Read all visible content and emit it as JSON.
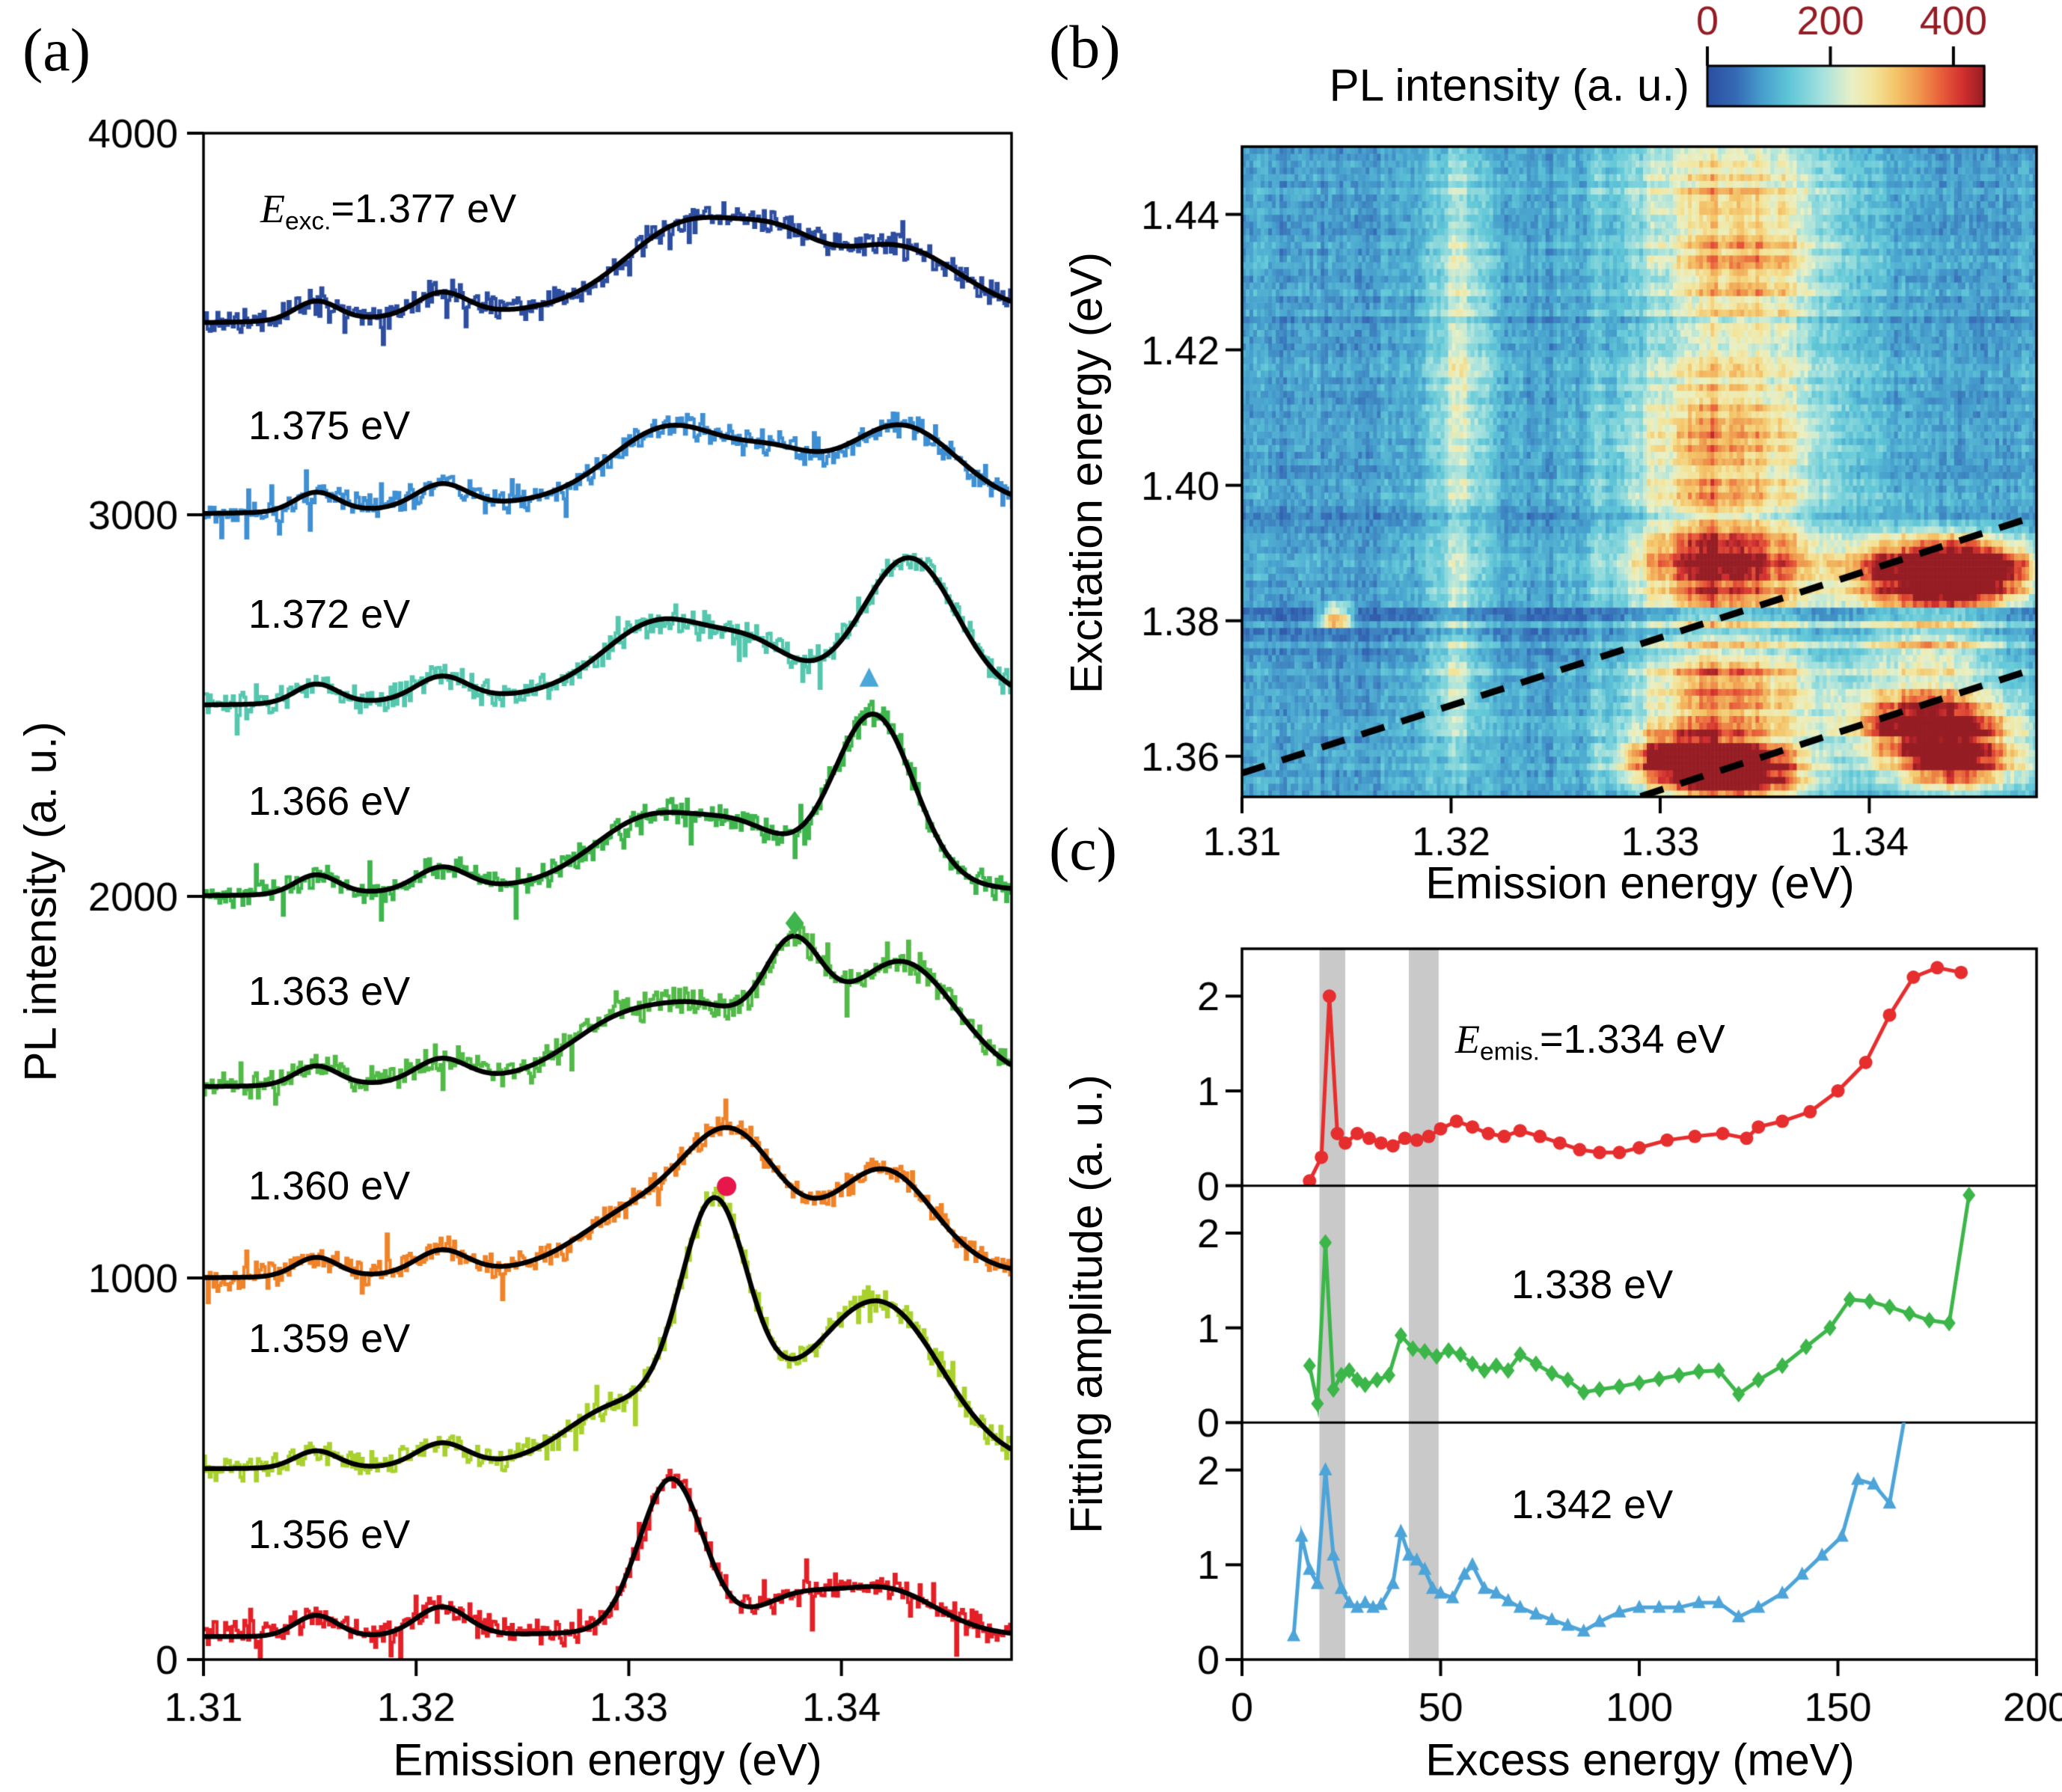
{
  "panel_labels": {
    "a": "(a)",
    "b": "(b)",
    "c": "(c)"
  },
  "chart_data": [
    {
      "id": "a",
      "type": "line",
      "xlabel": "Emission energy (eV)",
      "ylabel": "PL intensity (a. u.)",
      "xlim": [
        1.31,
        1.348
      ],
      "ylim": [
        0,
        4000
      ],
      "xticks": [
        1.31,
        1.32,
        1.33,
        1.34
      ],
      "yticks": [
        0,
        1000,
        2000,
        3000,
        4000
      ],
      "fit_color": "#000000",
      "noise_amp": 42,
      "spectra": [
        {
          "excitation_label": {
            "prefix": "E",
            "sub": "exc.",
            "rest": "=1.377 eV"
          },
          "excitation_eV": 1.377,
          "color": "#2d4da0",
          "offset": 3500,
          "peaks": [
            [
              1.3153,
              0.001,
              50
            ],
            [
              1.3212,
              0.0012,
              60
            ],
            [
              1.333,
              0.003,
              215
            ],
            [
              1.3372,
              0.0018,
              90
            ],
            [
              1.3425,
              0.003,
              160
            ],
            [
              1.3355,
              0.011,
              55
            ]
          ]
        },
        {
          "excitation_label": {
            "rest": "1.375 eV"
          },
          "excitation_eV": 1.375,
          "color": "#3f8fd4",
          "offset": 3000,
          "peaks": [
            [
              1.3153,
              0.001,
              50
            ],
            [
              1.3212,
              0.0012,
              60
            ],
            [
              1.332,
              0.0028,
              185
            ],
            [
              1.337,
              0.0018,
              80
            ],
            [
              1.3428,
              0.0026,
              195
            ],
            [
              1.3355,
              0.011,
              50
            ]
          ]
        },
        {
          "excitation_label": {
            "rest": "1.372 eV"
          },
          "excitation_eV": 1.372,
          "color": "#54c7ae",
          "offset": 2500,
          "peaks": [
            [
              1.3153,
              0.001,
              50
            ],
            [
              1.3212,
              0.0012,
              60
            ],
            [
              1.3315,
              0.0026,
              180
            ],
            [
              1.336,
              0.0018,
              90
            ],
            [
              1.3432,
              0.0022,
              355
            ],
            [
              1.335,
              0.01,
              45
            ]
          ]
        },
        {
          "excitation_label": {
            "rest": "1.366 eV"
          },
          "excitation_eV": 1.366,
          "color": "#3eb54d",
          "offset": 2000,
          "peaks": [
            [
              1.3153,
              0.001,
              50
            ],
            [
              1.3212,
              0.0012,
              60
            ],
            [
              1.331,
              0.0026,
              165
            ],
            [
              1.3355,
              0.002,
              110
            ],
            [
              1.3415,
              0.0019,
              440
            ],
            [
              1.335,
              0.01,
              45
            ]
          ]
        },
        {
          "excitation_label": {
            "rest": "1.363 eV"
          },
          "excitation_eV": 1.363,
          "color": "#52ba47",
          "offset": 1500,
          "peaks": [
            [
              1.3153,
              0.001,
              50
            ],
            [
              1.3212,
              0.0012,
              60
            ],
            [
              1.33,
              0.0026,
              150
            ],
            [
              1.334,
              0.002,
              120
            ],
            [
              1.3377,
              0.0014,
              290
            ],
            [
              1.3428,
              0.0026,
              300
            ],
            [
              1.335,
              0.01,
              40
            ]
          ]
        },
        {
          "excitation_label": {
            "rest": "1.360 eV"
          },
          "excitation_eV": 1.36,
          "color": "#f08228",
          "offset": 1000,
          "peaks": [
            [
              1.3153,
              0.001,
              50
            ],
            [
              1.3212,
              0.0012,
              60
            ],
            [
              1.33,
              0.0024,
              120
            ],
            [
              1.3348,
              0.0023,
              330
            ],
            [
              1.342,
              0.0023,
              250
            ],
            [
              1.335,
              0.009,
              45
            ]
          ]
        },
        {
          "excitation_label": {
            "rest": "1.359 eV"
          },
          "excitation_eV": 1.359,
          "color": "#a8d12e",
          "offset": 500,
          "peaks": [
            [
              1.3153,
              0.001,
              45
            ],
            [
              1.3212,
              0.0012,
              60
            ],
            [
              1.3295,
              0.0024,
              140
            ],
            [
              1.334,
              0.0016,
              600
            ],
            [
              1.3375,
              0.003,
              100
            ],
            [
              1.342,
              0.0028,
              380
            ],
            [
              1.336,
              0.009,
              30
            ]
          ]
        },
        {
          "excitation_label": {
            "rest": "1.356 eV"
          },
          "excitation_eV": 1.356,
          "color": "#e41f26",
          "offset": 60,
          "peaks": [
            [
              1.3153,
              0.001,
              55
            ],
            [
              1.3212,
              0.0012,
              75
            ],
            [
              1.332,
              0.0015,
              400
            ],
            [
              1.3377,
              0.0018,
              75
            ],
            [
              1.342,
              0.0024,
              115
            ],
            [
              1.335,
              0.008,
              15
            ]
          ]
        }
      ],
      "feature_markers": [
        {
          "shape": "circle",
          "color": "#e8174b",
          "x": 1.3346,
          "y": 1240
        },
        {
          "shape": "diamond",
          "color": "#3eb54d",
          "x": 1.3378,
          "y": 1930
        },
        {
          "shape": "triangle",
          "color": "#4aa8d8",
          "x": 1.3413,
          "y": 2570
        }
      ]
    },
    {
      "id": "b",
      "type": "heatmap",
      "xlabel": "Emission energy (eV)",
      "ylabel": "Excitation energy (eV)",
      "xlim": [
        1.31,
        1.348
      ],
      "ylim": [
        1.354,
        1.45
      ],
      "xticks": [
        1.31,
        1.32,
        1.33,
        1.34
      ],
      "yticks": [
        1.36,
        1.38,
        1.4,
        1.42,
        1.44
      ],
      "ytick_labels": [
        "1.36",
        "1.38",
        "1.40",
        "1.42",
        "1.44"
      ],
      "colorbar": {
        "title": "PL intensity (a. u.)",
        "ticks": [
          0,
          200,
          400
        ],
        "range": [
          0,
          450
        ]
      },
      "colormap": [
        [
          0,
          "#2a4fa0"
        ],
        [
          0.1,
          "#3569b5"
        ],
        [
          0.2,
          "#47a0cd"
        ],
        [
          0.3,
          "#62c8d8"
        ],
        [
          0.42,
          "#a9e3de"
        ],
        [
          0.52,
          "#e9f0c6"
        ],
        [
          0.6,
          "#f3e49a"
        ],
        [
          0.68,
          "#f4c469"
        ],
        [
          0.76,
          "#ef9a4e"
        ],
        [
          0.84,
          "#e9613b"
        ],
        [
          0.92,
          "#d2302f"
        ],
        [
          1,
          "#941c24"
        ]
      ],
      "base_level": 95,
      "blobs": [
        {
          "x": 1.3335,
          "y": 1.3578,
          "sx": 0.0022,
          "sy": 0.003,
          "a": 430
        },
        {
          "x": 1.3308,
          "y": 1.3598,
          "sx": 0.0018,
          "sy": 0.0026,
          "a": 280
        },
        {
          "x": 1.343,
          "y": 1.3652,
          "sx": 0.0024,
          "sy": 0.0036,
          "a": 420
        },
        {
          "x": 1.3442,
          "y": 1.359,
          "sx": 0.002,
          "sy": 0.0028,
          "a": 330
        },
        {
          "x": 1.3428,
          "y": 1.3868,
          "sx": 0.0026,
          "sy": 0.004,
          "a": 410
        },
        {
          "x": 1.3452,
          "y": 1.3872,
          "sx": 0.0017,
          "sy": 0.003,
          "a": 300
        },
        {
          "x": 1.333,
          "y": 1.388,
          "sx": 0.0028,
          "sy": 0.0055,
          "a": 280
        },
        {
          "x": 1.3332,
          "y": 1.37,
          "sx": 0.0028,
          "sy": 0.0058,
          "a": 220
        },
        {
          "x": 1.343,
          "y": 1.3762,
          "sx": 0.0024,
          "sy": 0.003,
          "a": 190
        },
        {
          "x": 1.333,
          "y": 1.406,
          "sx": 0.003,
          "sy": 0.0085,
          "a": 185
        },
        {
          "x": 1.334,
          "y": 1.431,
          "sx": 0.0026,
          "sy": 0.0085,
          "a": 140
        },
        {
          "x": 1.333,
          "y": 1.447,
          "sx": 0.0035,
          "sy": 0.01,
          "a": 120
        },
        {
          "x": 1.3205,
          "y": 1.418,
          "sx": 0.0009,
          "sy": 0.028,
          "a": 130
        },
        {
          "x": 1.3202,
          "y": 1.372,
          "sx": 0.0008,
          "sy": 0.009,
          "a": 85
        },
        {
          "x": 1.3145,
          "y": 1.3808,
          "sx": 0.0005,
          "sy": 0.0009,
          "a": 600
        },
        {
          "x": 1.3335,
          "y": 1.4,
          "sx": 0.0045,
          "sy": 0.05,
          "a": 55
        }
      ],
      "dark_rows": [
        [
          1.3738,
          1.376,
          0.74
        ],
        [
          1.3772,
          1.3792,
          0.62
        ],
        [
          1.38,
          1.382,
          0.52
        ],
        [
          1.3936,
          1.3962,
          0.76
        ],
        [
          1.4238,
          1.4252,
          0.85
        ]
      ],
      "dashed_lines": [
        {
          "name": "replica-line-upper",
          "offset_eV": 0.0475
        },
        {
          "name": "replica-line-lower",
          "offset_eV": 0.025
        }
      ]
    },
    {
      "id": "c",
      "type": "line",
      "xlabel": "Excess energy (meV)",
      "ylabel": "Fitting amplitude (a. u.)",
      "xlim": [
        0,
        200
      ],
      "xticks": [
        0,
        50,
        100,
        150,
        200
      ],
      "ylim": [
        0,
        2.5
      ],
      "yticks": [
        0,
        1,
        2
      ],
      "gray_bands": {
        "color": "#c9c9c9",
        "ranges_meV": [
          [
            19.5,
            26
          ],
          [
            42,
            49.5
          ]
        ]
      },
      "subplots": [
        {
          "emission_label": {
            "prefix": "E",
            "sub": "emis.",
            "rest": "=1.334 eV"
          },
          "emission_eV": 1.334,
          "color": "#e62e2e",
          "marker": "circle",
          "x": [
            17,
            20,
            22,
            24,
            26,
            29,
            32,
            35,
            38,
            41,
            44,
            47,
            50,
            54,
            58,
            62,
            66,
            70,
            75,
            80,
            85,
            90,
            95,
            100,
            107,
            114,
            121,
            127,
            130,
            136,
            143,
            150,
            157,
            163,
            169,
            175,
            181
          ],
          "y": [
            0.05,
            0.3,
            2.0,
            0.55,
            0.45,
            0.55,
            0.5,
            0.45,
            0.42,
            0.5,
            0.48,
            0.52,
            0.6,
            0.68,
            0.62,
            0.55,
            0.52,
            0.58,
            0.52,
            0.45,
            0.38,
            0.35,
            0.35,
            0.4,
            0.48,
            0.52,
            0.55,
            0.5,
            0.62,
            0.68,
            0.78,
            1.0,
            1.3,
            1.8,
            2.2,
            2.3,
            2.25
          ]
        },
        {
          "emission_label": {
            "rest": "1.338 eV"
          },
          "emission_eV": 1.338,
          "color": "#3cb649",
          "marker": "diamond",
          "x": [
            17,
            19,
            21,
            23,
            25,
            27,
            29,
            31,
            34,
            37,
            40,
            43,
            46,
            49,
            52,
            55,
            58,
            61,
            64,
            67,
            70,
            74,
            78,
            82,
            86,
            90,
            95,
            100,
            105,
            110,
            115,
            120,
            125,
            130,
            136,
            142,
            148,
            153,
            158,
            163,
            168,
            173,
            178,
            183
          ],
          "y": [
            0.6,
            0.2,
            1.9,
            0.35,
            0.5,
            0.55,
            0.45,
            0.4,
            0.45,
            0.5,
            0.92,
            0.78,
            0.75,
            0.7,
            0.76,
            0.72,
            0.62,
            0.55,
            0.6,
            0.55,
            0.72,
            0.62,
            0.52,
            0.45,
            0.32,
            0.35,
            0.38,
            0.42,
            0.46,
            0.5,
            0.54,
            0.55,
            0.3,
            0.45,
            0.6,
            0.8,
            1.0,
            1.3,
            1.28,
            1.22,
            1.15,
            1.08,
            1.05,
            2.4
          ]
        },
        {
          "emission_label": {
            "rest": "1.342 eV"
          },
          "emission_eV": 1.342,
          "color": "#4da4d9",
          "marker": "triangle",
          "x": [
            13,
            15,
            17,
            19,
            21,
            23,
            25,
            27,
            29,
            31,
            33,
            35,
            38,
            40,
            42,
            44,
            46,
            48,
            50,
            53,
            56,
            58,
            61,
            64,
            67,
            70,
            74,
            78,
            82,
            86,
            90,
            95,
            100,
            105,
            110,
            115,
            120,
            125,
            130,
            136,
            141,
            146,
            151,
            155,
            159,
            163,
            167
          ],
          "y": [
            0.25,
            1.3,
            0.95,
            0.8,
            2.0,
            1.1,
            0.75,
            0.6,
            0.55,
            0.6,
            0.55,
            0.58,
            0.8,
            1.35,
            1.1,
            1.05,
            0.95,
            0.75,
            0.7,
            0.65,
            0.9,
            1.0,
            0.75,
            0.7,
            0.62,
            0.55,
            0.48,
            0.42,
            0.36,
            0.3,
            0.4,
            0.5,
            0.55,
            0.55,
            0.55,
            0.6,
            0.6,
            0.45,
            0.55,
            0.7,
            0.9,
            1.1,
            1.3,
            1.9,
            1.85,
            1.65,
            2.6
          ]
        }
      ]
    }
  ]
}
